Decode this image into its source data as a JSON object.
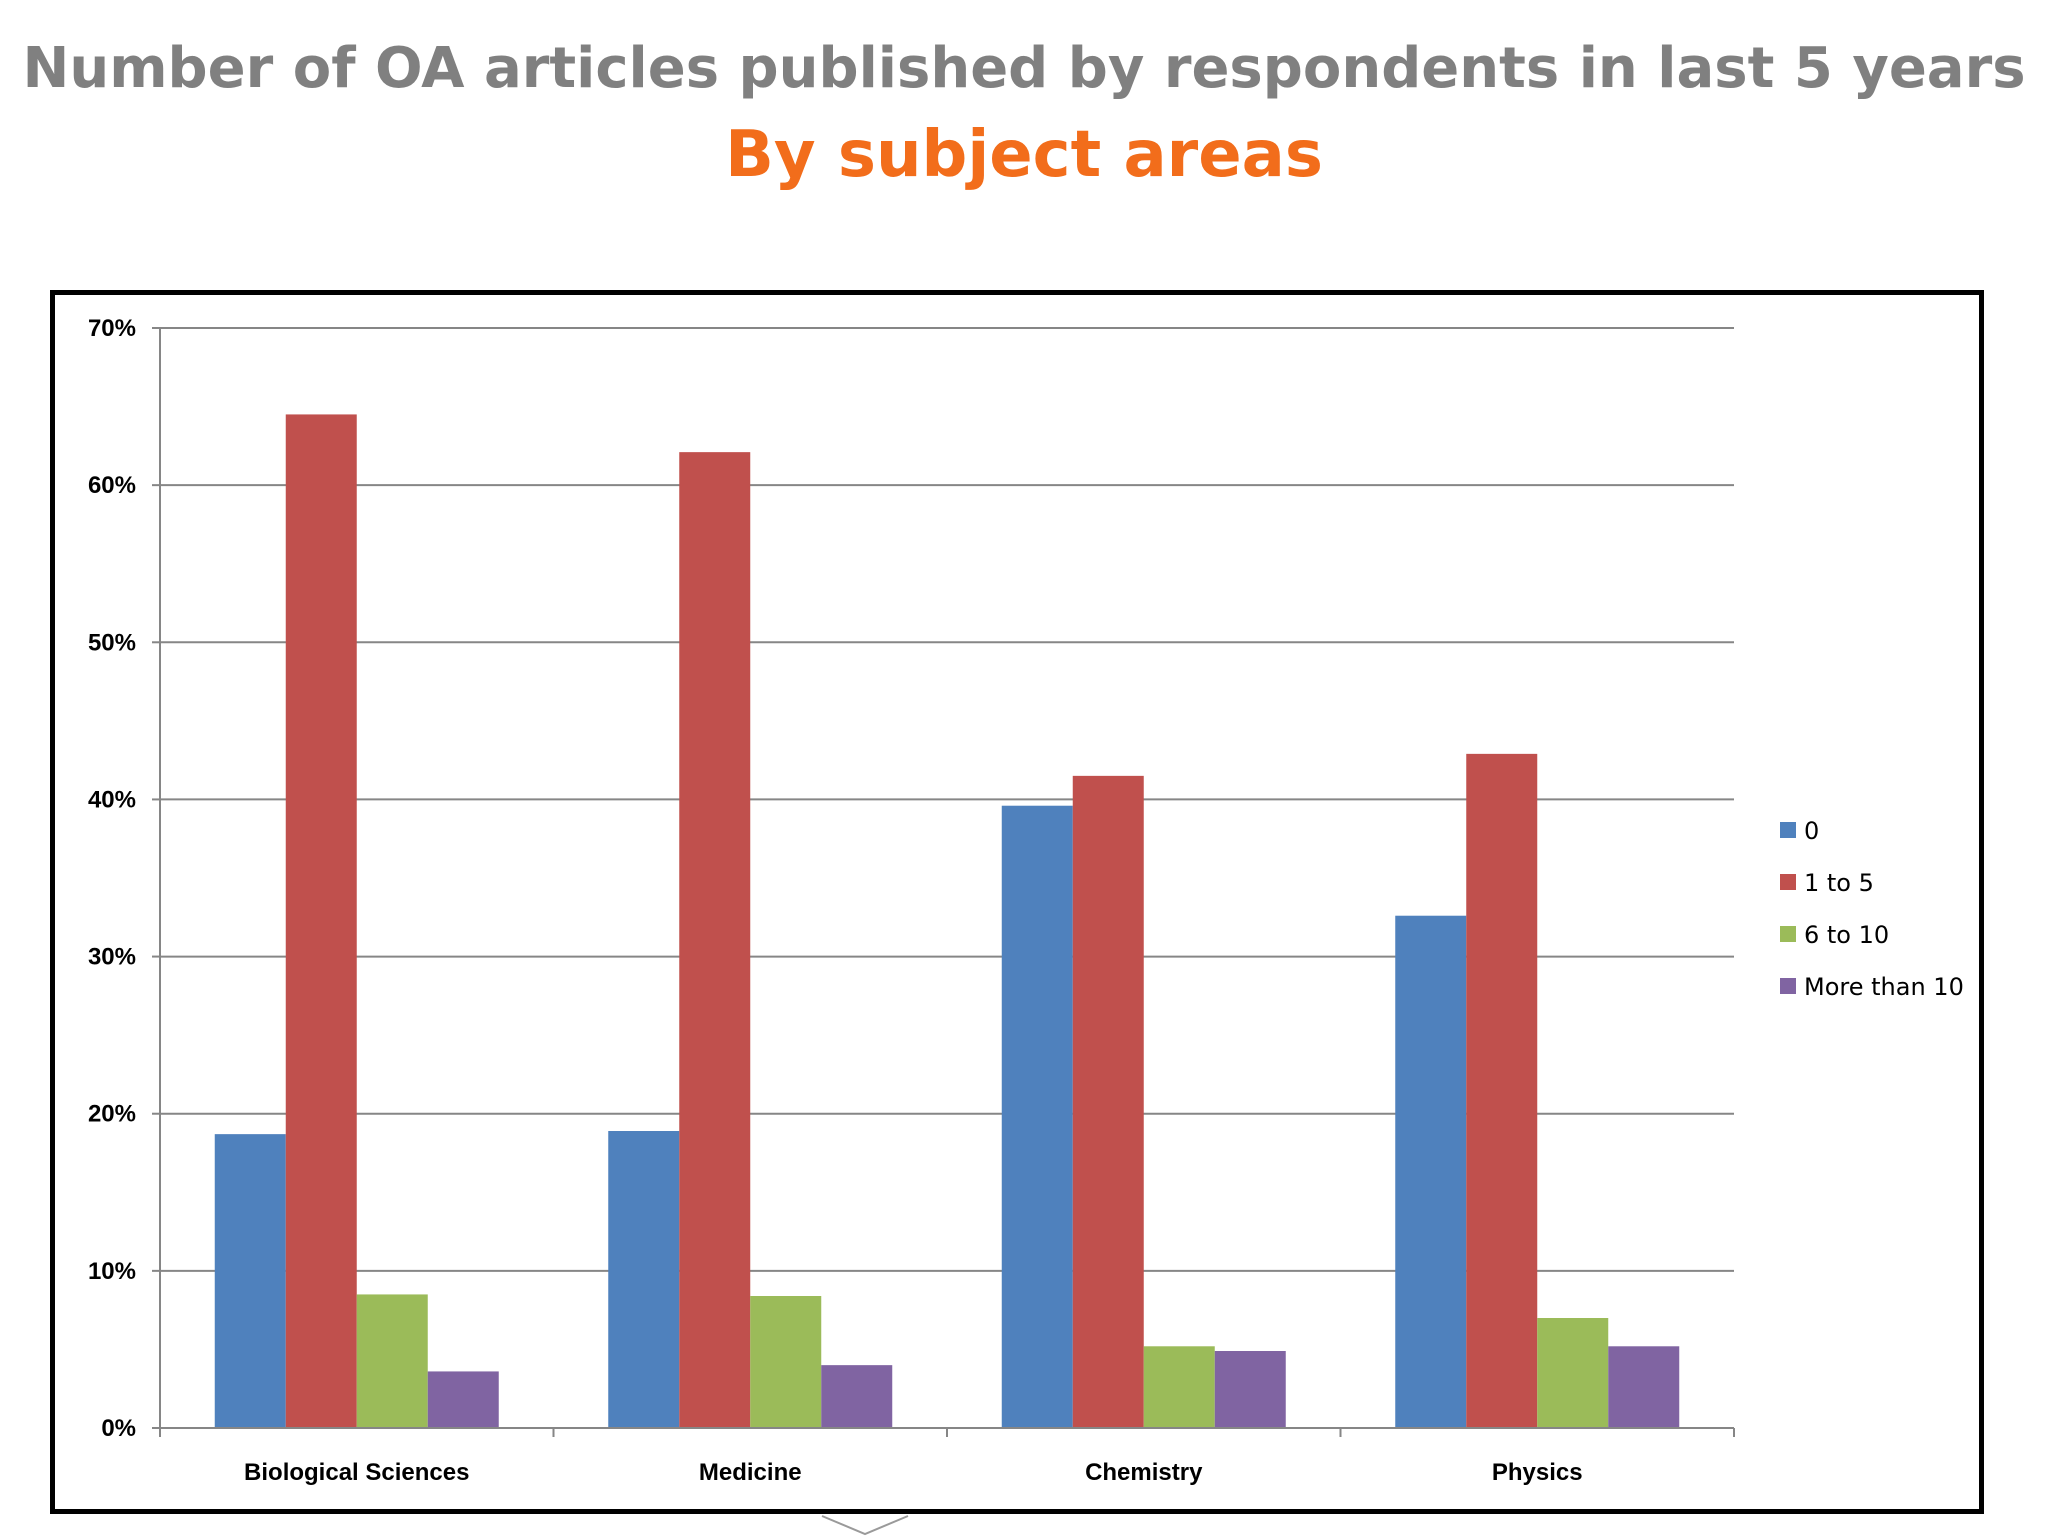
{
  "header": {
    "title": "Number of OA articles published by respondents in last 5 years",
    "subtitle": "By subject areas"
  },
  "colors": {
    "title": "#808080",
    "subtitle": "#f26d1b",
    "series": [
      "#4f81bd",
      "#c0504d",
      "#9bbb59",
      "#8064a2"
    ],
    "grid": "#868686"
  },
  "chart_data": {
    "type": "bar",
    "categories": [
      "Biological Sciences",
      "Medicine",
      "Chemistry",
      "Physics"
    ],
    "series": [
      {
        "name": "0",
        "values": [
          18.7,
          18.9,
          39.6,
          32.6
        ]
      },
      {
        "name": "1 to 5",
        "values": [
          64.5,
          62.1,
          41.5,
          42.9
        ]
      },
      {
        "name": "6 to 10",
        "values": [
          8.5,
          8.4,
          5.2,
          7.0
        ]
      },
      {
        "name": "More than 10",
        "values": [
          3.6,
          4.0,
          4.9,
          5.2
        ]
      }
    ],
    "ylim": [
      0,
      70
    ],
    "yticks": [
      "0%",
      "10%",
      "20%",
      "30%",
      "40%",
      "50%",
      "60%",
      "70%"
    ],
    "ytick_values": [
      0,
      10,
      20,
      30,
      40,
      50,
      60,
      70
    ],
    "xlabel": "",
    "ylabel": "",
    "grid": true,
    "legend_position": "right"
  }
}
